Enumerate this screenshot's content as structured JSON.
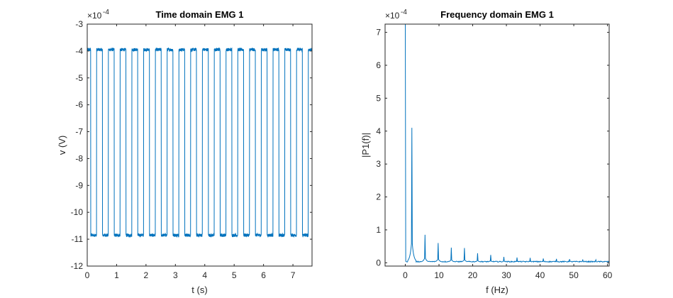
{
  "figure": {
    "background": "#ffffff",
    "axis_color": "#262626",
    "line_color": "#0072BD"
  },
  "chart_data": [
    {
      "type": "line",
      "title": "Time domain EMG 1",
      "xlabel": "t (s)",
      "ylabel": "v (V)",
      "y_exponent_label": "×10",
      "y_exponent": "-4",
      "xlim": [
        0,
        7.65
      ],
      "ylim": [
        -12,
        -3
      ],
      "xticks": [
        0,
        1,
        2,
        3,
        4,
        5,
        6,
        7
      ],
      "yticks": [
        -12,
        -11,
        -10,
        -9,
        -8,
        -7,
        -6,
        -5,
        -4,
        -3
      ],
      "xtick_labels": [
        "0",
        "1",
        "2",
        "3",
        "4",
        "5",
        "6",
        "7"
      ],
      "ytick_labels": [
        "-12",
        "-11",
        "-10",
        "-9",
        "-8",
        "-7",
        "-6",
        "-5",
        "-4",
        "-3"
      ],
      "waveform": {
        "shape": "square",
        "high_level": -3.95,
        "low_level": -10.85,
        "period_s": 0.4,
        "first_high_end_s": 0.12,
        "duty_high": 0.5,
        "noise_amplitude": 0.06
      },
      "color": "#0072BD"
    },
    {
      "type": "line",
      "title": "Frequency domain EMG 1",
      "xlabel": "f (Hz)",
      "ylabel": "|P1(f)|",
      "y_exponent_label": "×10",
      "y_exponent": "-4",
      "xlim": [
        -6,
        60.5
      ],
      "ylim": [
        -0.1,
        7.25
      ],
      "xticks": [
        0,
        10,
        20,
        30,
        40,
        50,
        60
      ],
      "yticks": [
        0,
        1,
        2,
        3,
        4,
        5,
        6,
        7
      ],
      "xtick_labels": [
        "0",
        "10",
        "20",
        "30",
        "40",
        "50",
        "60"
      ],
      "ytick_labels": [
        "0",
        "1",
        "2",
        "3",
        "4",
        "5",
        "6",
        "7"
      ],
      "peaks": {
        "dc": {
          "f": 0,
          "value": 7.25
        },
        "harmonics": [
          {
            "f": 1.95,
            "value": 4.1
          },
          {
            "f": 5.85,
            "value": 0.85
          },
          {
            "f": 9.75,
            "value": 0.6
          },
          {
            "f": 13.65,
            "value": 0.46
          },
          {
            "f": 17.55,
            "value": 0.45
          },
          {
            "f": 21.45,
            "value": 0.29
          },
          {
            "f": 25.35,
            "value": 0.24
          },
          {
            "f": 29.25,
            "value": 0.18
          },
          {
            "f": 33.15,
            "value": 0.16
          },
          {
            "f": 37.05,
            "value": 0.15
          },
          {
            "f": 40.95,
            "value": 0.13
          },
          {
            "f": 44.85,
            "value": 0.12
          },
          {
            "f": 48.75,
            "value": 0.11
          },
          {
            "f": 52.65,
            "value": 0.1
          },
          {
            "f": 56.55,
            "value": 0.09
          }
        ],
        "baseline": 0.02
      },
      "color": "#0072BD"
    }
  ]
}
